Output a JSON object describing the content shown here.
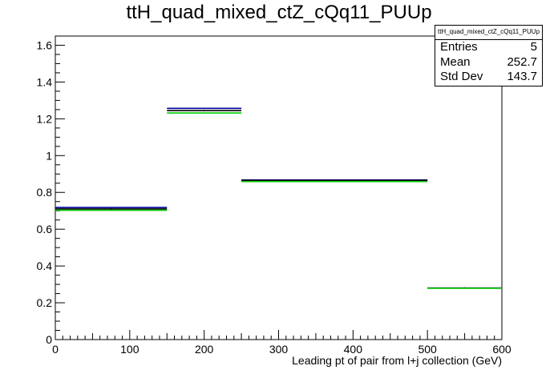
{
  "title": "ttH_quad_mixed_ctZ_cQq11_PUUp",
  "stats": {
    "title": "ttH_quad_mixed_ctZ_cQq11_PUUp",
    "rows": [
      {
        "label": "Entries",
        "value": "5"
      },
      {
        "label": "Mean",
        "value": "252.7"
      },
      {
        "label": "Std Dev",
        "value": "143.7"
      }
    ]
  },
  "chart_data": {
    "type": "bar",
    "title": "ttH_quad_mixed_ctZ_cQq11_PUUp",
    "xlabel": "Leading pt of pair from l+j collection (GeV)",
    "ylabel": "",
    "xlim": [
      0,
      600
    ],
    "ylim": [
      0,
      1.65
    ],
    "grid": false,
    "bin_edges": [
      0,
      150,
      250,
      500,
      600
    ],
    "x_ticks": [
      "0",
      "100",
      "200",
      "300",
      "400",
      "500",
      "600"
    ],
    "y_ticks": [
      "0",
      "0.2",
      "0.4",
      "0.6",
      "0.8",
      "1",
      "1.2",
      "1.4",
      "1.6"
    ],
    "series": [
      {
        "color": "#000099",
        "values": [
          0.718,
          1.257,
          0.868,
          0.28
        ]
      },
      {
        "color": "#000000",
        "values": [
          0.71,
          1.245,
          0.865,
          0.28
        ]
      },
      {
        "color": "#00cc00",
        "values": [
          0.703,
          1.232,
          0.859,
          0.279
        ]
      }
    ]
  }
}
